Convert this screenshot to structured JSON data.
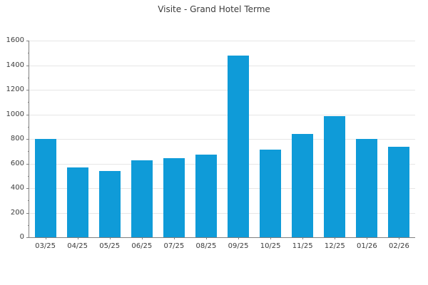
{
  "title": "Visite - Grand Hotel Terme",
  "chart_data": {
    "type": "bar",
    "title": "Visite - Grand Hotel Terme",
    "categories": [
      "03/25",
      "04/25",
      "05/25",
      "06/25",
      "07/25",
      "08/25",
      "09/25",
      "10/25",
      "11/25",
      "12/25",
      "01/26",
      "02/26"
    ],
    "values": [
      800,
      570,
      540,
      625,
      645,
      675,
      1480,
      715,
      840,
      985,
      800,
      735
    ],
    "xlabel": "",
    "ylabel": "",
    "ylim": [
      0,
      1600
    ],
    "ytick_step": 200,
    "ytick_minor_step": 100,
    "grid": "horizontal",
    "legend": "none",
    "colors": {
      "bar": "#0f9bd8",
      "grid": "#e6e6e6",
      "axis": "#7f7f7f",
      "text": "#3c3c3c"
    }
  }
}
